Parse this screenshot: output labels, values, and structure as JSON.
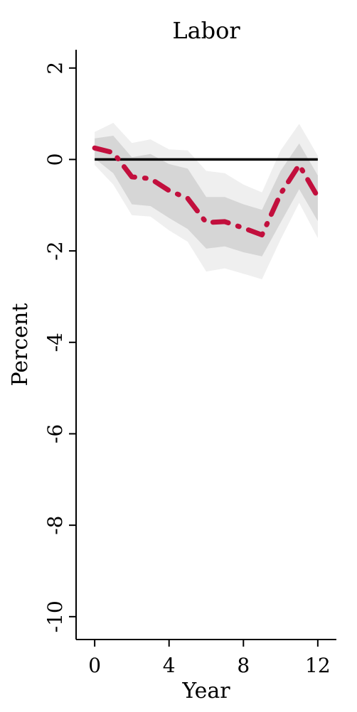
{
  "chart_data": {
    "type": "line",
    "title": "Labor",
    "xlabel": "Year",
    "ylabel": "Percent",
    "xlim": [
      -1,
      13
    ],
    "ylim": [
      -10.5,
      2.4
    ],
    "x_ticks": [
      0,
      4,
      8,
      12
    ],
    "y_ticks": [
      2,
      0,
      -2,
      -4,
      -6,
      -8,
      -10
    ],
    "grid": false,
    "zero_line": 0,
    "series": [
      {
        "style": "dash-dot",
        "color": "#c20f3d",
        "x": [
          0,
          1,
          2,
          3,
          4,
          5,
          6,
          7,
          8,
          9,
          10,
          11,
          12
        ],
        "values": [
          0.25,
          0.15,
          -0.38,
          -0.42,
          -0.68,
          -0.85,
          -1.38,
          -1.36,
          -1.5,
          -1.65,
          -0.75,
          -0.12,
          -0.82
        ]
      }
    ],
    "bands": [
      {
        "level": "outer",
        "color": "#efefef",
        "lower": [
          -0.12,
          -0.55,
          -1.22,
          -1.25,
          -1.55,
          -1.8,
          -2.45,
          -2.38,
          -2.5,
          -2.62,
          -1.75,
          -0.95,
          -1.72
        ],
        "upper": [
          0.6,
          0.8,
          0.36,
          0.44,
          0.22,
          0.2,
          -0.25,
          -0.3,
          -0.55,
          -0.72,
          0.2,
          0.78,
          0.08
        ]
      },
      {
        "level": "inner",
        "color": "#d6d6d6",
        "lower": [
          0.02,
          -0.3,
          -0.98,
          -1.02,
          -1.28,
          -1.52,
          -1.95,
          -1.9,
          -2.03,
          -2.12,
          -1.38,
          -0.65,
          -1.35
        ],
        "upper": [
          0.46,
          0.52,
          0.05,
          0.12,
          -0.1,
          -0.2,
          -0.82,
          -0.82,
          -0.98,
          -1.1,
          -0.25,
          0.35,
          -0.35
        ]
      }
    ]
  }
}
